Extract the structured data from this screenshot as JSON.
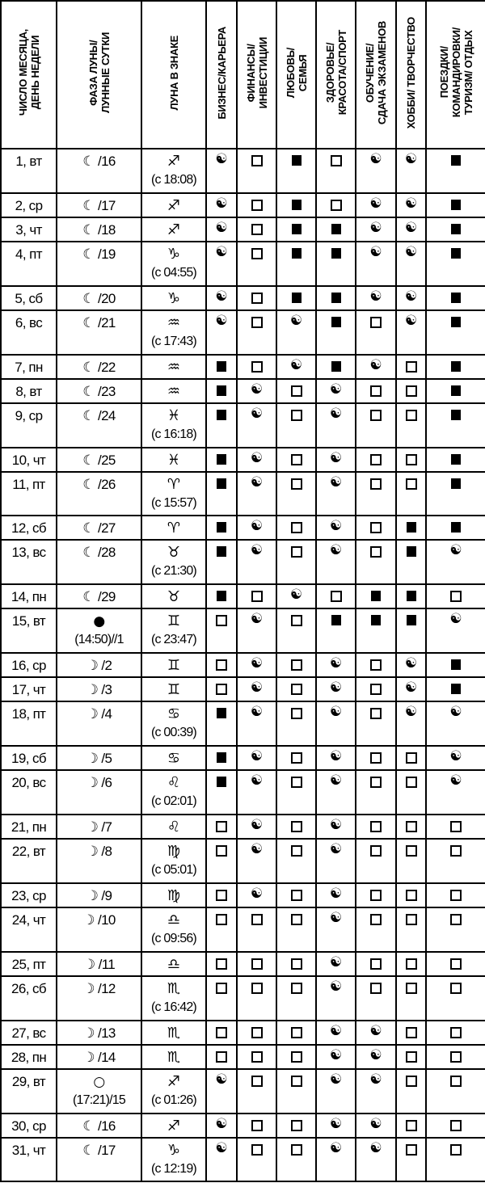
{
  "headers": [
    {
      "lines": [
        "ЧИСЛО МЕСЯЦА,",
        "ДЕНЬ НЕДЕЛИ"
      ]
    },
    {
      "lines": [
        "ФАЗА ЛУНЫ/",
        "ЛУННЫЕ СУТКИ"
      ]
    },
    {
      "lines": [
        "ЛУНА В ЗНАКЕ"
      ]
    },
    {
      "lines": [
        "БИЗНЕС/КАРЬЕРА"
      ]
    },
    {
      "lines": [
        "ФИНАНСЫ/",
        "ИНВЕСТИЦИИ"
      ]
    },
    {
      "lines": [
        "ЛЮБОВЬ/",
        "СЕМЬЯ"
      ]
    },
    {
      "lines": [
        "ЗДОРОВЬЕ/",
        "КРАСОТА/СПОРТ"
      ]
    },
    {
      "lines": [
        "ОБУЧЕНИЕ/",
        "СДАЧА ЭКЗАМЕНОВ"
      ]
    },
    {
      "lines": [
        "ХОББИ/ ТВОРЧЕСТВО"
      ]
    },
    {
      "lines": [
        "ПОЕЗДКИ/",
        "КОМАНДИРОВКИ/",
        "ТУРИЗМ/ ОТДЫХ"
      ]
    }
  ],
  "mark_icons": {
    "Y": "yin-yang",
    "E": "empty-square",
    "F": "filled-square"
  },
  "rows": [
    {
      "date": "1, вт",
      "phase_icon": "☾",
      "phase": " /16",
      "phase_sub": "",
      "sign": "♐",
      "sign_time": "(с 18:08)",
      "marks": "YEFEYYF"
    },
    {
      "date": "2, ср",
      "phase_icon": "☾",
      "phase": " /17",
      "phase_sub": "",
      "sign": "♐",
      "sign_time": "",
      "marks": "YEFEYYF"
    },
    {
      "date": "3, чт",
      "phase_icon": "☾",
      "phase": " /18",
      "phase_sub": "",
      "sign": "♐",
      "sign_time": "",
      "marks": "YEFFYYF"
    },
    {
      "date": "4, пт",
      "phase_icon": "☾",
      "phase": " /19",
      "phase_sub": "",
      "sign": "♑",
      "sign_time": "(с 04:55)",
      "marks": "YEFFYYF"
    },
    {
      "date": "5, сб",
      "phase_icon": "☾",
      "phase": " /20",
      "phase_sub": "",
      "sign": "♑",
      "sign_time": "",
      "marks": "YEFFYYF"
    },
    {
      "date": "6, вс",
      "phase_icon": "☾",
      "phase": " /21",
      "phase_sub": "",
      "sign": "♒",
      "sign_time": "(с 17:43)",
      "marks": "YEYFEYF"
    },
    {
      "date": "7, пн",
      "phase_icon": "☾",
      "phase": " /22",
      "phase_sub": "",
      "sign": "♒",
      "sign_time": "",
      "marks": "FEYFYEF"
    },
    {
      "date": "8, вт",
      "phase_icon": "☾",
      "phase": " /23",
      "phase_sub": "",
      "sign": "♒",
      "sign_time": "",
      "marks": "FYEYEEF"
    },
    {
      "date": "9, ср",
      "phase_icon": "☾",
      "phase": " /24",
      "phase_sub": "",
      "sign": "♓",
      "sign_time": "(с 16:18)",
      "marks": "FYEYEEF"
    },
    {
      "date": "10, чт",
      "phase_icon": "☾",
      "phase": " /25",
      "phase_sub": "",
      "sign": "♓",
      "sign_time": "",
      "marks": "FYEYEEF"
    },
    {
      "date": "11, пт",
      "phase_icon": "☾",
      "phase": " /26",
      "phase_sub": "",
      "sign": "♈",
      "sign_time": "(с 15:57)",
      "marks": "FYEYEEF"
    },
    {
      "date": "12, сб",
      "phase_icon": "☾",
      "phase": " /27",
      "phase_sub": "",
      "sign": "♈",
      "sign_time": "",
      "marks": "FYEYEFF"
    },
    {
      "date": "13, вс",
      "phase_icon": "☾",
      "phase": " /28",
      "phase_sub": "",
      "sign": "♉",
      "sign_time": "(с 21:30)",
      "marks": "FYEYEFY"
    },
    {
      "date": "14, пн",
      "phase_icon": "☾",
      "phase": " /29",
      "phase_sub": "",
      "sign": "♉",
      "sign_time": "",
      "marks": "FEYEFFE"
    },
    {
      "date": "15, вт",
      "phase_icon": "●",
      "phase": "",
      "phase_sub": "(14:50)//1",
      "sign": "♊",
      "sign_time": "(с 23:47)",
      "marks": "EYEFFFY"
    },
    {
      "date": "16, ср",
      "phase_icon": "☽",
      "phase": " /2",
      "phase_sub": "",
      "sign": "♊",
      "sign_time": "",
      "marks": "EYEYEYF"
    },
    {
      "date": "17, чт",
      "phase_icon": "☽",
      "phase": " /3",
      "phase_sub": "",
      "sign": "♊",
      "sign_time": "",
      "marks": "EYEYEYF"
    },
    {
      "date": "18, пт",
      "phase_icon": "☽",
      "phase": " /4",
      "phase_sub": "",
      "sign": "♋",
      "sign_time": "(с 00:39)",
      "marks": "FYEYEYY"
    },
    {
      "date": "19, сб",
      "phase_icon": "☽",
      "phase": " /5",
      "phase_sub": "",
      "sign": "♋",
      "sign_time": "",
      "marks": "FYEYEEY"
    },
    {
      "date": "20, вс",
      "phase_icon": "☽",
      "phase": " /6",
      "phase_sub": "",
      "sign": "♌",
      "sign_time": "(с 02:01)",
      "marks": "FYEYEEY"
    },
    {
      "date": "21, пн",
      "phase_icon": "☽",
      "phase": " /7",
      "phase_sub": "",
      "sign": "♌",
      "sign_time": "",
      "marks": "EYEYEEE"
    },
    {
      "date": "22, вт",
      "phase_icon": "☽",
      "phase": " /8",
      "phase_sub": "",
      "sign": "♍",
      "sign_time": "(с 05:01)",
      "marks": "EYEYEEE"
    },
    {
      "date": "23, ср",
      "phase_icon": "☽",
      "phase": " /9",
      "phase_sub": "",
      "sign": "♍",
      "sign_time": "",
      "marks": "EYEYEEE"
    },
    {
      "date": "24, чт",
      "phase_icon": "☽",
      "phase": " /10",
      "phase_sub": "",
      "sign": "♎",
      "sign_time": "(с 09:56)",
      "marks": "EEEYEEE"
    },
    {
      "date": "25, пт",
      "phase_icon": "☽",
      "phase": " /11",
      "phase_sub": "",
      "sign": "♎",
      "sign_time": "",
      "marks": "EEEYEEE"
    },
    {
      "date": "26, сб",
      "phase_icon": "☽",
      "phase": " /12",
      "phase_sub": "",
      "sign": "♏",
      "sign_time": "(с 16:42)",
      "marks": "EEEYEEE"
    },
    {
      "date": "27, вс",
      "phase_icon": "☽",
      "phase": " /13",
      "phase_sub": "",
      "sign": "♏",
      "sign_time": "",
      "marks": "EEEYYEE"
    },
    {
      "date": "28, пн",
      "phase_icon": "☽",
      "phase": " /14",
      "phase_sub": "",
      "sign": "♏",
      "sign_time": "",
      "marks": "EEEYYEE"
    },
    {
      "date": "29, вт",
      "phase_icon": "○",
      "phase": "",
      "phase_sub": "(17:21)/15",
      "sign": "♐",
      "sign_time": "(с 01:26)",
      "marks": "YEEYYEE"
    },
    {
      "date": "30, ср",
      "phase_icon": "☾",
      "phase": " /16",
      "phase_sub": "",
      "sign": "♐",
      "sign_time": "",
      "marks": "YEEYYEE"
    },
    {
      "date": "31, чт",
      "phase_icon": "☾",
      "phase": " /17",
      "phase_sub": "",
      "sign": "♑",
      "sign_time": "(с 12:19)",
      "marks": "YEEYYEE"
    }
  ]
}
